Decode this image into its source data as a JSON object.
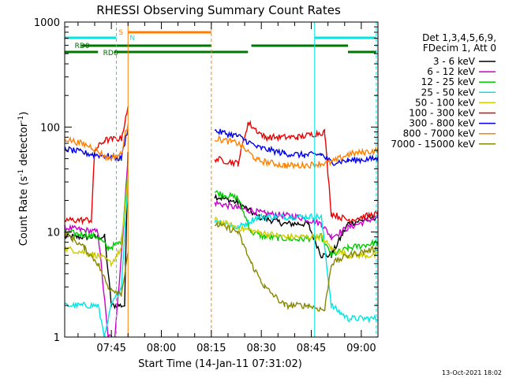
{
  "chart_data": {
    "type": "line",
    "title": "RHESSI Observing Summary Count Rates",
    "xlabel": "Start Time (14-Jan-11 07:31:02)",
    "ylabel_main": "Count Rate (s",
    "ylabel_sup1": "-1",
    "ylabel_mid": " detector",
    "ylabel_sup2": "-1",
    "ylabel_end": ")",
    "y_scale": "log",
    "ylim": [
      1,
      1000
    ],
    "xlim_minutes": [
      0,
      94
    ],
    "x_ticks": [
      {
        "label": "07:45",
        "t": 14
      },
      {
        "label": "08:00",
        "t": 29
      },
      {
        "label": "08:15",
        "t": 44
      },
      {
        "label": "08:30",
        "t": 59
      },
      {
        "label": "08:45",
        "t": 74
      },
      {
        "label": "09:00",
        "t": 89
      }
    ],
    "y_ticks": [
      {
        "label": "1",
        "v": 1
      },
      {
        "label": "10",
        "v": 10
      },
      {
        "label": "100",
        "v": 100
      },
      {
        "label": "1000",
        "v": 1000
      }
    ],
    "legend_header": [
      "Det 1,3,4,5,6,9,",
      "FDecim 1, Att 0"
    ],
    "series": [
      {
        "name": "3 - 6 keV",
        "color": "#000000",
        "points": [
          [
            0,
            9
          ],
          [
            12,
            9
          ],
          [
            14,
            2
          ],
          [
            18,
            2
          ],
          [
            19,
            60
          ],
          [
            40,
            null
          ],
          [
            45,
            22
          ],
          [
            52,
            19
          ],
          [
            58,
            14
          ],
          [
            66,
            12
          ],
          [
            73,
            12
          ],
          [
            77,
            6
          ],
          [
            80,
            6
          ],
          [
            85,
            12
          ],
          [
            94,
            14
          ]
        ]
      },
      {
        "name": "6 - 12 keV",
        "color": "#cc00cc",
        "points": [
          [
            0,
            11
          ],
          [
            10,
            10
          ],
          [
            13,
            1
          ],
          [
            15,
            1
          ],
          [
            17,
            6
          ],
          [
            19,
            50
          ],
          [
            40,
            null
          ],
          [
            45,
            19
          ],
          [
            52,
            17
          ],
          [
            60,
            15
          ],
          [
            70,
            14
          ],
          [
            77,
            12
          ],
          [
            80,
            9
          ],
          [
            85,
            11
          ],
          [
            94,
            14
          ]
        ]
      },
      {
        "name": "12 - 25 keV",
        "color": "#00cc00",
        "points": [
          [
            0,
            10
          ],
          [
            10,
            9
          ],
          [
            13,
            7
          ],
          [
            17,
            8
          ],
          [
            19,
            40
          ],
          [
            40,
            null
          ],
          [
            45,
            24
          ],
          [
            52,
            21
          ],
          [
            56,
            10
          ],
          [
            60,
            9
          ],
          [
            70,
            8.5
          ],
          [
            77,
            9
          ],
          [
            80,
            6
          ],
          [
            85,
            7
          ],
          [
            94,
            8
          ]
        ]
      },
      {
        "name": "25 - 50 keV",
        "color": "#00e5e5",
        "points": [
          [
            0,
            2
          ],
          [
            10,
            2
          ],
          [
            12,
            1
          ],
          [
            14,
            2
          ],
          [
            17,
            3
          ],
          [
            19,
            30
          ],
          [
            40,
            null
          ],
          [
            45,
            13
          ],
          [
            52,
            11
          ],
          [
            58,
            14
          ],
          [
            66,
            14
          ],
          [
            77,
            14
          ],
          [
            80,
            2
          ],
          [
            85,
            1.5
          ],
          [
            94,
            1.5
          ]
        ]
      },
      {
        "name": "50 - 100 keV",
        "color": "#cccc00",
        "points": [
          [
            0,
            7
          ],
          [
            10,
            6
          ],
          [
            14,
            5
          ],
          [
            17,
            7
          ],
          [
            19,
            35
          ],
          [
            40,
            null
          ],
          [
            45,
            13
          ],
          [
            52,
            11
          ],
          [
            58,
            10
          ],
          [
            66,
            9
          ],
          [
            77,
            9
          ],
          [
            80,
            7
          ],
          [
            85,
            6
          ],
          [
            94,
            6
          ]
        ]
      },
      {
        "name": "100 - 300 keV",
        "color": "#ee0000",
        "points": [
          [
            0,
            13
          ],
          [
            8,
            13
          ],
          [
            9,
            60
          ],
          [
            12,
            75
          ],
          [
            17,
            78
          ],
          [
            19,
            150
          ],
          [
            40,
            null
          ],
          [
            45,
            50
          ],
          [
            52,
            45
          ],
          [
            55,
            110
          ],
          [
            60,
            80
          ],
          [
            70,
            80
          ],
          [
            78,
            90
          ],
          [
            80,
            15
          ],
          [
            85,
            13
          ],
          [
            94,
            15
          ]
        ]
      },
      {
        "name": "300 - 800 keV",
        "color": "#0000ee",
        "points": [
          [
            0,
            62
          ],
          [
            8,
            55
          ],
          [
            13,
            53
          ],
          [
            17,
            50
          ],
          [
            19,
            100
          ],
          [
            40,
            null
          ],
          [
            45,
            92
          ],
          [
            52,
            82
          ],
          [
            58,
            64
          ],
          [
            66,
            56
          ],
          [
            72,
            54
          ],
          [
            77,
            55
          ],
          [
            80,
            46
          ],
          [
            85,
            48
          ],
          [
            94,
            50
          ]
        ]
      },
      {
        "name": "800 - 7000 keV",
        "color": "#ff8000",
        "points": [
          [
            0,
            78
          ],
          [
            8,
            65
          ],
          [
            13,
            50
          ],
          [
            17,
            55
          ],
          [
            19,
            110
          ],
          [
            40,
            null
          ],
          [
            45,
            78
          ],
          [
            52,
            70
          ],
          [
            58,
            48
          ],
          [
            66,
            43
          ],
          [
            72,
            43
          ],
          [
            77,
            45
          ],
          [
            80,
            46
          ],
          [
            85,
            55
          ],
          [
            94,
            60
          ]
        ]
      },
      {
        "name": "7000 - 15000 keV",
        "color": "#888800",
        "points": [
          [
            0,
            10
          ],
          [
            6,
            7
          ],
          [
            10,
            5
          ],
          [
            13,
            3
          ],
          [
            17,
            2.6
          ],
          [
            19,
            6
          ],
          [
            40,
            null
          ],
          [
            45,
            12
          ],
          [
            52,
            10
          ],
          [
            56,
            5
          ],
          [
            60,
            3
          ],
          [
            66,
            2
          ],
          [
            73,
            2
          ],
          [
            78,
            1.8
          ],
          [
            80,
            5
          ],
          [
            85,
            6
          ],
          [
            94,
            7
          ]
        ]
      }
    ],
    "annotations": {
      "rd0_label": "RD0",
      "rd6_label": "RD6",
      "s_label": "S",
      "n_label": "N"
    },
    "flags": {
      "color_cyan": "#00e5e5",
      "color_green": "#007700",
      "color_orange": "#ff8000",
      "cyan_segments": [
        [
          0,
          15.5
        ],
        [
          75,
          93.5
        ]
      ],
      "green_upper_segments": [
        [
          5,
          44
        ],
        [
          56,
          85
        ]
      ],
      "green_lower_segments": [
        [
          0,
          10
        ],
        [
          15,
          44
        ],
        [
          44,
          55
        ],
        [
          85,
          93.5
        ]
      ],
      "orange_segment": [
        19,
        44
      ],
      "saa_lines_cyan": [
        15.5,
        75,
        93.5
      ],
      "saa_lines_orange": [
        19,
        44
      ]
    },
    "grid": false
  },
  "footer": {
    "timestamp": "13-Oct-2021 18:02"
  }
}
